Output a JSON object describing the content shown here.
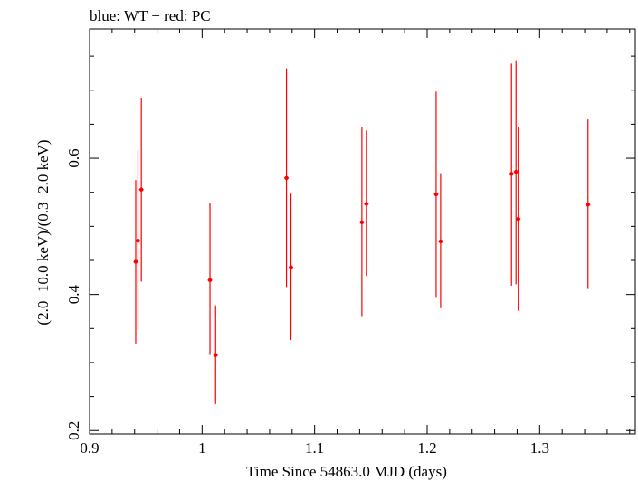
{
  "chart_data": {
    "type": "scatter",
    "title": "blue: WT − red: PC",
    "xlabel": "Time Since 54863.0 MJD (days)",
    "ylabel": "(2.0−10.0 keV)/(0.3−2.0 keV)",
    "xlim": [
      0.9,
      1.385
    ],
    "ylim": [
      0.195,
      0.79
    ],
    "x_ticks": [
      0.9,
      1,
      1.1,
      1.2,
      1.3
    ],
    "x_tick_labels": [
      "0.9",
      "1",
      "1.1",
      "1.2",
      "1.3"
    ],
    "y_ticks": [
      0.2,
      0.4,
      0.6
    ],
    "y_tick_labels": [
      "0.2",
      "0.4",
      "0.6"
    ],
    "grid": false,
    "series": [
      {
        "name": "PC",
        "color": "#ff0000",
        "points": [
          {
            "x": 0.941,
            "y": 0.448,
            "ylo": 0.328,
            "yhi": 0.568
          },
          {
            "x": 0.943,
            "y": 0.479,
            "ylo": 0.348,
            "yhi": 0.611
          },
          {
            "x": 0.946,
            "y": 0.554,
            "ylo": 0.419,
            "yhi": 0.689
          },
          {
            "x": 1.007,
            "y": 0.421,
            "ylo": 0.311,
            "yhi": 0.535
          },
          {
            "x": 1.012,
            "y": 0.311,
            "ylo": 0.239,
            "yhi": 0.384
          },
          {
            "x": 1.075,
            "y": 0.571,
            "ylo": 0.411,
            "yhi": 0.732
          },
          {
            "x": 1.079,
            "y": 0.44,
            "ylo": 0.333,
            "yhi": 0.548
          },
          {
            "x": 1.142,
            "y": 0.506,
            "ylo": 0.367,
            "yhi": 0.646
          },
          {
            "x": 1.146,
            "y": 0.533,
            "ylo": 0.427,
            "yhi": 0.641
          },
          {
            "x": 1.208,
            "y": 0.547,
            "ylo": 0.395,
            "yhi": 0.698
          },
          {
            "x": 1.212,
            "y": 0.478,
            "ylo": 0.38,
            "yhi": 0.578
          },
          {
            "x": 1.275,
            "y": 0.577,
            "ylo": 0.413,
            "yhi": 0.739
          },
          {
            "x": 1.279,
            "y": 0.58,
            "ylo": 0.415,
            "yhi": 0.744
          },
          {
            "x": 1.281,
            "y": 0.511,
            "ylo": 0.376,
            "yhi": 0.646
          },
          {
            "x": 1.343,
            "y": 0.532,
            "ylo": 0.408,
            "yhi": 0.657
          }
        ]
      }
    ]
  }
}
